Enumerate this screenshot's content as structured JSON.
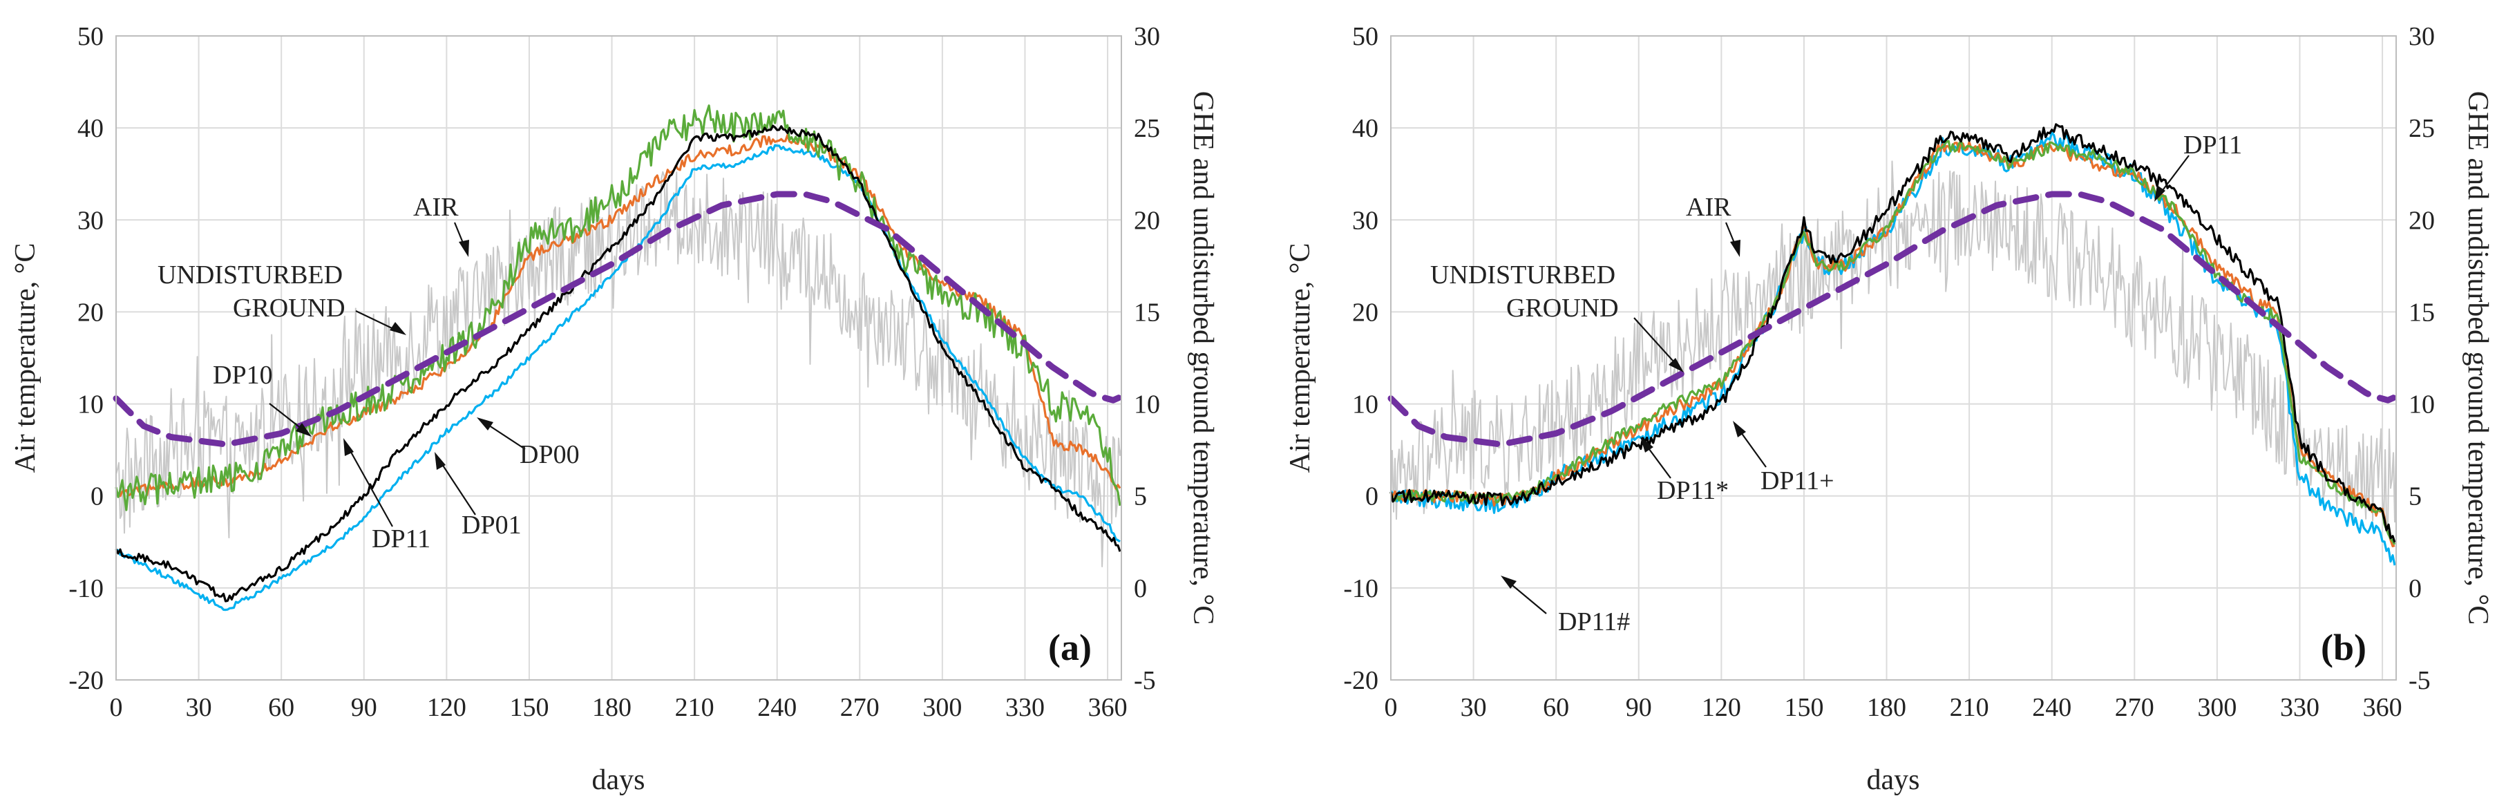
{
  "chart_data": [
    {
      "type": "line",
      "panel_label": "(a)",
      "xlabel": "days",
      "ylabel_left": "Air temperature, °C",
      "ylabel_right": "GHE and undisturbed ground temperature, °C",
      "xlim": [
        0,
        365
      ],
      "ylim_left": [
        -20,
        50
      ],
      "ylim_right": [
        -5,
        30
      ],
      "x_ticks": [
        "0",
        "30",
        "60",
        "90",
        "120",
        "150",
        "180",
        "210",
        "240",
        "270",
        "300",
        "330",
        "360"
      ],
      "y_ticks_left": [
        "-20",
        "-10",
        "0",
        "10",
        "20",
        "30",
        "40",
        "50"
      ],
      "y_ticks_right": [
        "-5",
        "0",
        "5",
        "10",
        "15",
        "20",
        "25",
        "30"
      ],
      "grid": true,
      "series": [
        {
          "name": "AIR",
          "axis": "left",
          "color": "#c8c8c8",
          "noise": 5.5,
          "x": [
            0,
            15,
            30,
            45,
            60,
            75,
            90,
            105,
            120,
            135,
            150,
            165,
            180,
            195,
            210,
            225,
            240,
            255,
            270,
            285,
            300,
            315,
            330,
            345,
            360,
            365
          ],
          "y": [
            0,
            4,
            6,
            5,
            8,
            10,
            14,
            16,
            19,
            22,
            24,
            27,
            27,
            30,
            30,
            29,
            27,
            24,
            21,
            18,
            15,
            11,
            6,
            3,
            2,
            2
          ]
        },
        {
          "name": "UNDISTURBED GROUND",
          "axis": "right",
          "color": "#7030a0",
          "dashed": true,
          "x": [
            0,
            10,
            20,
            40,
            60,
            80,
            100,
            120,
            140,
            160,
            180,
            200,
            220,
            240,
            250,
            260,
            280,
            300,
            320,
            340,
            355,
            362,
            365
          ],
          "y": [
            10.3,
            8.8,
            8.2,
            7.8,
            8.4,
            9.6,
            11.2,
            12.8,
            14.4,
            16.0,
            17.6,
            19.4,
            20.8,
            21.4,
            21.4,
            21.0,
            19.5,
            17.0,
            14.5,
            12.0,
            10.5,
            10.2,
            10.4
          ]
        },
        {
          "name": "DP00",
          "axis": "right",
          "color": "#00b0f0",
          "noise": 0.15,
          "x": [
            0,
            20,
            40,
            60,
            80,
            90,
            100,
            120,
            140,
            160,
            180,
            195,
            210,
            225,
            240,
            255,
            270,
            285,
            300,
            315,
            330,
            340,
            350,
            360,
            365
          ],
          "y": [
            2.0,
            0.5,
            -1.2,
            0.5,
            2.5,
            3.8,
            5.5,
            8.5,
            11.0,
            14.0,
            17.0,
            19.5,
            22.8,
            23.0,
            24.0,
            23.5,
            22.0,
            17.5,
            13.5,
            10.5,
            7.0,
            5.5,
            5.0,
            3.5,
            2.3
          ]
        },
        {
          "name": "DP01",
          "axis": "right",
          "color": "#e8702a",
          "noise": 0.3,
          "x": [
            0,
            20,
            40,
            50,
            60,
            75,
            90,
            105,
            120,
            135,
            150,
            165,
            180,
            195,
            210,
            225,
            240,
            255,
            270,
            285,
            300,
            315,
            330,
            340,
            350,
            360,
            365
          ],
          "y": [
            5.0,
            5.6,
            5.8,
            6.2,
            7.0,
            8.5,
            9.5,
            10.5,
            12.0,
            14.0,
            18.0,
            19.0,
            20.0,
            22.0,
            23.5,
            23.8,
            24.5,
            24.0,
            22.5,
            18.5,
            16.5,
            15.5,
            13.5,
            8.0,
            7.5,
            6.5,
            5.0
          ]
        },
        {
          "name": "DP10",
          "axis": "right",
          "color": "#5aab3a",
          "noise": 0.9,
          "x": [
            0,
            20,
            40,
            50,
            60,
            75,
            90,
            105,
            120,
            135,
            150,
            165,
            180,
            195,
            210,
            225,
            240,
            255,
            270,
            285,
            300,
            315,
            330,
            340,
            350,
            360,
            365
          ],
          "y": [
            5.0,
            5.6,
            5.8,
            6.5,
            7.5,
            9.0,
            10.0,
            11.0,
            12.5,
            14.5,
            19.0,
            19.5,
            21.0,
            24.0,
            25.5,
            25.0,
            25.5,
            24.0,
            22.0,
            18.0,
            16.0,
            15.0,
            13.0,
            10.0,
            9.5,
            7.5,
            5.0
          ]
        },
        {
          "name": "DP11",
          "axis": "right",
          "color": "#000000",
          "noise": 0.2,
          "x": [
            0,
            20,
            40,
            60,
            80,
            90,
            100,
            120,
            140,
            160,
            180,
            195,
            210,
            225,
            240,
            255,
            270,
            285,
            300,
            315,
            330,
            340,
            350,
            360,
            365
          ],
          "y": [
            2.0,
            1.2,
            -0.6,
            1.0,
            3.5,
            5.0,
            7.0,
            10.0,
            12.5,
            15.5,
            18.5,
            21.0,
            24.5,
            24.5,
            25.0,
            24.5,
            22.0,
            17.5,
            13.0,
            10.0,
            6.5,
            5.5,
            4.0,
            3.0,
            2.0
          ]
        }
      ],
      "annotations": [
        "AIR",
        "UNDISTURBED",
        "GROUND",
        "DP10",
        "DP00",
        "DP01",
        "DP11"
      ]
    },
    {
      "type": "line",
      "panel_label": "(b)",
      "xlabel": "days",
      "ylabel_left": "Air temperature, °C",
      "ylabel_right": "GHE and undisturbed ground temperature, °C",
      "xlim": [
        0,
        365
      ],
      "ylim_left": [
        -20,
        50
      ],
      "ylim_right": [
        -5,
        30
      ],
      "x_ticks": [
        "0",
        "30",
        "60",
        "90",
        "120",
        "150",
        "180",
        "210",
        "240",
        "270",
        "300",
        "330",
        "360"
      ],
      "y_ticks_left": [
        "-20",
        "-10",
        "0",
        "10",
        "20",
        "30",
        "40",
        "50"
      ],
      "y_ticks_right": [
        "-5",
        "0",
        "5",
        "10",
        "15",
        "20",
        "25",
        "30"
      ],
      "grid": true,
      "series": [
        {
          "name": "AIR",
          "axis": "left",
          "color": "#c8c8c8",
          "noise": 5.5,
          "x": [
            0,
            15,
            30,
            45,
            60,
            75,
            90,
            105,
            120,
            135,
            150,
            165,
            180,
            195,
            210,
            225,
            240,
            255,
            270,
            285,
            300,
            315,
            330,
            345,
            360,
            365
          ],
          "y": [
            0,
            4,
            6,
            5,
            8,
            10,
            14,
            16,
            19,
            22,
            24,
            27,
            27,
            30,
            30,
            29,
            27,
            24,
            21,
            18,
            15,
            11,
            6,
            3,
            2,
            2
          ]
        },
        {
          "name": "UNDISTURBED GROUND",
          "axis": "right",
          "color": "#7030a0",
          "dashed": true,
          "x": [
            0,
            10,
            20,
            40,
            60,
            80,
            100,
            120,
            140,
            160,
            180,
            200,
            220,
            240,
            250,
            260,
            280,
            300,
            320,
            340,
            355,
            362,
            365
          ],
          "y": [
            10.3,
            8.8,
            8.2,
            7.8,
            8.4,
            9.6,
            11.2,
            12.8,
            14.4,
            16.0,
            17.6,
            19.4,
            20.8,
            21.4,
            21.4,
            21.0,
            19.5,
            17.0,
            14.5,
            12.0,
            10.5,
            10.2,
            10.4
          ]
        },
        {
          "name": "DP11#",
          "axis": "right",
          "color": "#00b0f0",
          "noise": 0.5,
          "x": [
            0,
            20,
            40,
            50,
            60,
            80,
            100,
            120,
            130,
            140,
            150,
            155,
            165,
            180,
            195,
            200,
            210,
            225,
            240,
            255,
            270,
            285,
            300,
            315,
            322,
            330,
            340,
            350,
            360,
            365
          ],
          "y": [
            5.0,
            4.8,
            4.5,
            5.0,
            6.0,
            7.5,
            9.0,
            10.5,
            13.0,
            15.5,
            19.5,
            17.5,
            17.5,
            19.5,
            22.5,
            24.0,
            24.0,
            23.0,
            24.5,
            23.5,
            22.5,
            20.0,
            16.5,
            15.0,
            14.5,
            6.0,
            4.5,
            3.5,
            3.0,
            1.0
          ]
        },
        {
          "name": "DP11*",
          "axis": "right",
          "color": "#e8702a",
          "noise": 0.35,
          "x": [
            0,
            20,
            40,
            50,
            60,
            80,
            100,
            120,
            130,
            140,
            150,
            155,
            165,
            180,
            195,
            200,
            210,
            225,
            240,
            255,
            270,
            285,
            300,
            315,
            322,
            330,
            340,
            350,
            360,
            365
          ],
          "y": [
            5.0,
            5.0,
            4.8,
            5.2,
            6.0,
            7.8,
            9.5,
            11.0,
            13.2,
            15.5,
            19.5,
            17.5,
            17.5,
            19.5,
            23.0,
            24.0,
            24.0,
            23.0,
            24.0,
            23.0,
            22.5,
            20.5,
            17.5,
            15.5,
            15.0,
            7.5,
            6.0,
            5.0,
            4.0,
            2.0
          ]
        },
        {
          "name": "DP11+",
          "axis": "right",
          "color": "#5aab3a",
          "noise": 0.3,
          "x": [
            0,
            20,
            40,
            50,
            60,
            80,
            100,
            120,
            130,
            140,
            150,
            155,
            165,
            180,
            195,
            200,
            210,
            225,
            240,
            255,
            270,
            285,
            300,
            315,
            322,
            330,
            340,
            350,
            360,
            365
          ],
          "y": [
            5.0,
            5.0,
            4.8,
            5.2,
            6.0,
            8.0,
            9.8,
            11.2,
            13.2,
            15.5,
            19.5,
            17.5,
            17.5,
            19.5,
            23.0,
            24.0,
            24.0,
            23.0,
            24.0,
            23.5,
            22.5,
            20.5,
            17.0,
            15.0,
            14.8,
            7.0,
            5.8,
            4.8,
            4.0,
            2.0
          ]
        },
        {
          "name": "DP11",
          "axis": "right",
          "color": "#000000",
          "noise": 0.35,
          "x": [
            0,
            20,
            40,
            50,
            60,
            80,
            100,
            120,
            130,
            140,
            150,
            155,
            165,
            180,
            195,
            200,
            210,
            225,
            240,
            255,
            270,
            285,
            300,
            315,
            322,
            330,
            340,
            350,
            360,
            365
          ],
          "y": [
            5.0,
            5.0,
            4.8,
            5.0,
            5.8,
            7.0,
            8.5,
            10.0,
            12.5,
            15.5,
            20.0,
            18.0,
            18.0,
            20.5,
            23.5,
            24.5,
            24.5,
            23.5,
            25.0,
            24.0,
            23.0,
            21.5,
            19.0,
            16.5,
            15.5,
            8.0,
            6.0,
            5.0,
            4.0,
            2.0
          ]
        }
      ],
      "annotations": [
        "AIR",
        "UNDISTURBED",
        "GROUND",
        "DP11",
        "DP11*",
        "DP11+",
        "DP11#"
      ]
    }
  ]
}
